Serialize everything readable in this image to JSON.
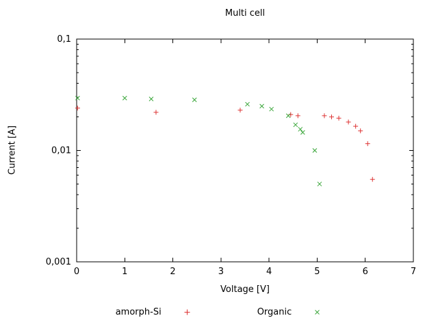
{
  "chart_data": {
    "type": "scatter",
    "title": "Multi cell",
    "xlabel": "Voltage [V]",
    "ylabel": "Current [A]",
    "x_scale": "linear",
    "y_scale": "log",
    "xlim": [
      0,
      7
    ],
    "ylim": [
      0.001,
      0.1
    ],
    "grid": "off",
    "legend_position": "bottom-center",
    "xticks": {
      "values": [
        0,
        1,
        2,
        3,
        4,
        5,
        6,
        7
      ],
      "labels": [
        "0",
        "1",
        "2",
        "3",
        "4",
        "5",
        "6",
        "7"
      ]
    },
    "yticks": {
      "values": [
        0.001,
        0.01,
        0.1
      ],
      "labels": [
        "0,001",
        "0,01",
        "0,1"
      ]
    },
    "series": [
      {
        "name": "amorph-Si",
        "marker": "plus",
        "color": "#dd3333",
        "points": [
          [
            0.02,
            0.024
          ],
          [
            1.65,
            0.022
          ],
          [
            3.4,
            0.023
          ],
          [
            4.45,
            0.021
          ],
          [
            4.6,
            0.0205
          ],
          [
            5.15,
            0.0205
          ],
          [
            5.3,
            0.02
          ],
          [
            5.45,
            0.0195
          ],
          [
            5.65,
            0.018
          ],
          [
            5.8,
            0.0165
          ],
          [
            5.9,
            0.015
          ],
          [
            6.05,
            0.0115
          ],
          [
            6.15,
            0.0055
          ]
        ]
      },
      {
        "name": "Organic",
        "marker": "cross",
        "color": "#3aa63a",
        "points": [
          [
            0.02,
            0.0295
          ],
          [
            1.0,
            0.0295
          ],
          [
            1.55,
            0.029
          ],
          [
            2.45,
            0.0285
          ],
          [
            3.55,
            0.026
          ],
          [
            3.85,
            0.025
          ],
          [
            4.05,
            0.0235
          ],
          [
            4.4,
            0.0205
          ],
          [
            4.55,
            0.017
          ],
          [
            4.65,
            0.0155
          ],
          [
            4.7,
            0.0145
          ],
          [
            4.95,
            0.01
          ],
          [
            5.05,
            0.005
          ]
        ]
      }
    ]
  }
}
